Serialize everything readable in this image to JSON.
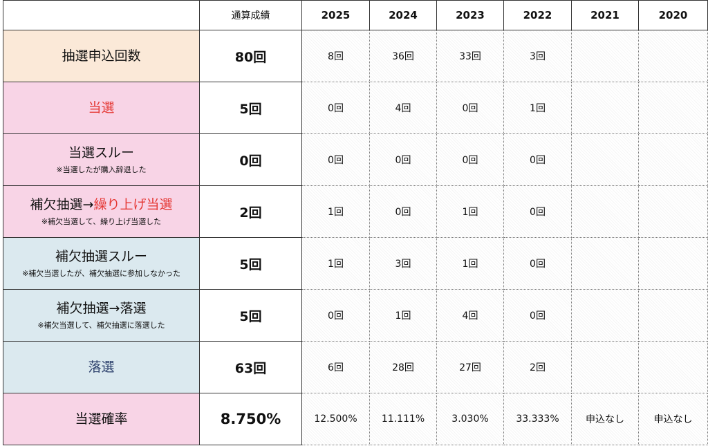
{
  "header": {
    "corner": "",
    "total": "通算成績",
    "years": [
      "2025",
      "2024",
      "2023",
      "2022",
      "2021",
      "2020"
    ]
  },
  "rows": [
    {
      "label": "抽選申込回数",
      "note": "",
      "total": "80回",
      "values": [
        "8回",
        "36回",
        "33回",
        "3回",
        "",
        ""
      ]
    },
    {
      "label": "当選",
      "note": "",
      "total": "5回",
      "values": [
        "0回",
        "4回",
        "0回",
        "1回",
        "",
        ""
      ]
    },
    {
      "label": "当選スルー",
      "note": "※当選したが購入辞退した",
      "total": "0回",
      "values": [
        "0回",
        "0回",
        "0回",
        "0回",
        "",
        ""
      ]
    },
    {
      "label_prefix": "補欠抽選→",
      "label_highlight": "繰り上げ当選",
      "note": "※補欠当選して、繰り上げ当選した",
      "total": "2回",
      "values": [
        "1回",
        "0回",
        "1回",
        "0回",
        "",
        ""
      ]
    },
    {
      "label": "補欠抽選スルー",
      "note": "※補欠当選したが、補欠抽選に参加しなかった",
      "total": "5回",
      "values": [
        "1回",
        "3回",
        "1回",
        "0回",
        "",
        ""
      ]
    },
    {
      "label": "補欠抽選→落選",
      "note": "※補欠当選して、補欠抽選に落選した",
      "total": "5回",
      "values": [
        "0回",
        "1回",
        "4回",
        "0回",
        "",
        ""
      ]
    },
    {
      "label": "落選",
      "note": "",
      "total": "63回",
      "values": [
        "6回",
        "28回",
        "27回",
        "2回",
        "",
        ""
      ]
    },
    {
      "label": "当選確率",
      "note": "",
      "total": "8.750%",
      "values": [
        "12.500%",
        "11.111%",
        "3.030%",
        "33.333%",
        "申込なし",
        "申込なし"
      ]
    }
  ],
  "colors": {
    "beige": "#fbe9d8",
    "pink": "#f8d4e6",
    "blue": "#dbe9ef",
    "win_red": "#e53935",
    "lose_blue": "#2b3f6b"
  }
}
